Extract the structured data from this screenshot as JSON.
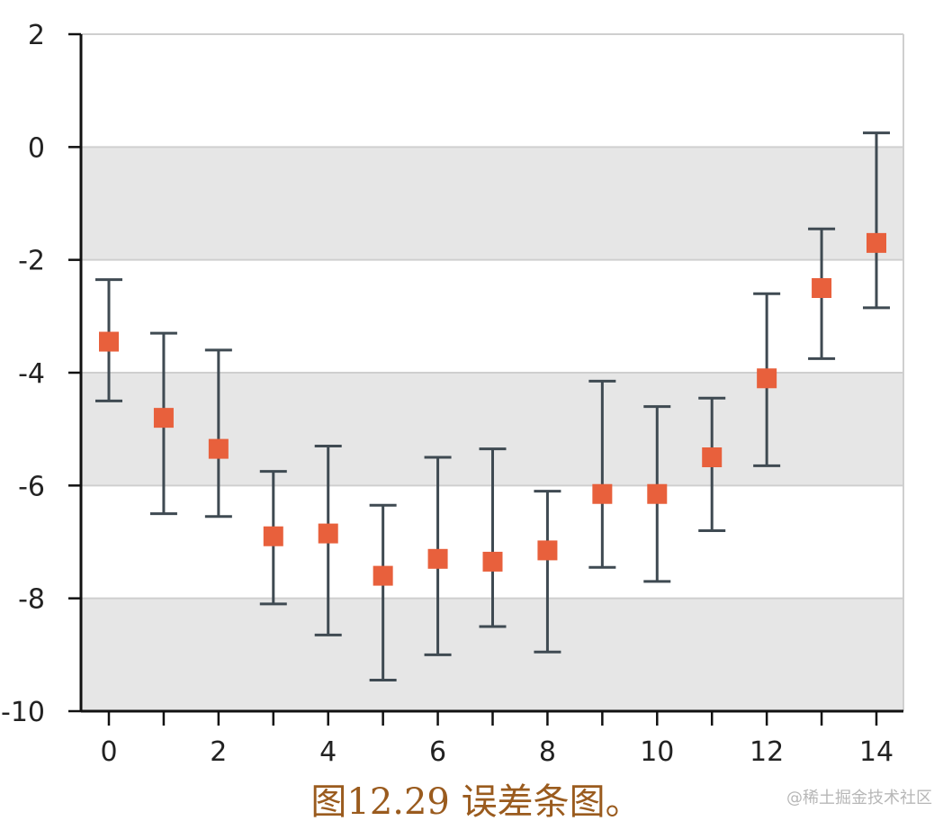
{
  "caption": "图12.29 误差条图。",
  "watermark": "@稀土掘金技术社区",
  "chart_data": {
    "type": "scatter",
    "error_bars": true,
    "title": "",
    "xlabel": "",
    "ylabel": "",
    "xlim": [
      -0.5,
      14.5
    ],
    "ylim": [
      -10,
      2
    ],
    "x_ticks": [
      "0",
      "2",
      "4",
      "6",
      "8",
      "10",
      "12",
      "14"
    ],
    "y_ticks": [
      "2",
      "0",
      "-2",
      "-4",
      "-6",
      "-8",
      "-10"
    ],
    "grid": true,
    "band_color": "#e6e6e6",
    "marker_color": "#e8603c",
    "errorbar_color": "#3f4a52",
    "points": [
      {
        "x": 0,
        "y": -3.45,
        "low": -4.5,
        "high": -2.35
      },
      {
        "x": 1,
        "y": -4.8,
        "low": -6.5,
        "high": -3.3
      },
      {
        "x": 2,
        "y": -5.35,
        "low": -6.55,
        "high": -3.6
      },
      {
        "x": 3,
        "y": -6.9,
        "low": -8.1,
        "high": -5.75
      },
      {
        "x": 4,
        "y": -6.85,
        "low": -8.65,
        "high": -5.3
      },
      {
        "x": 5,
        "y": -7.6,
        "low": -9.45,
        "high": -6.35
      },
      {
        "x": 6,
        "y": -7.3,
        "low": -9.0,
        "high": -5.5
      },
      {
        "x": 7,
        "y": -7.35,
        "low": -8.5,
        "high": -5.35
      },
      {
        "x": 8,
        "y": -7.15,
        "low": -8.95,
        "high": -6.1
      },
      {
        "x": 9,
        "y": -6.15,
        "low": -7.45,
        "high": -4.15
      },
      {
        "x": 10,
        "y": -6.15,
        "low": -7.7,
        "high": -4.6
      },
      {
        "x": 11,
        "y": -5.5,
        "low": -6.8,
        "high": -4.45
      },
      {
        "x": 12,
        "y": -4.1,
        "low": -5.65,
        "high": -2.6
      },
      {
        "x": 13,
        "y": -2.5,
        "low": -3.75,
        "high": -1.45
      },
      {
        "x": 14,
        "y": -1.7,
        "low": -2.85,
        "high": 0.25
      }
    ]
  }
}
